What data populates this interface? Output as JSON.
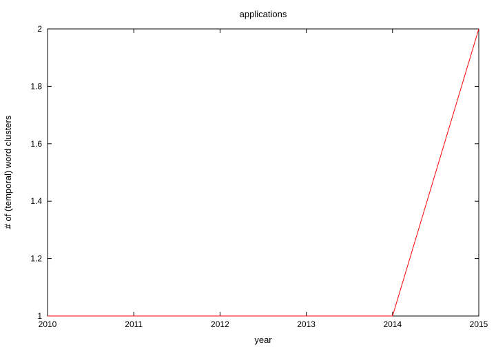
{
  "chart_data": {
    "type": "line",
    "title": "applications",
    "xlabel": "year",
    "ylabel": "# of (temporal) word clusters",
    "xlim": [
      2010,
      2015
    ],
    "ylim": [
      1,
      2
    ],
    "x_ticks": [
      "2010",
      "2011",
      "2012",
      "2013",
      "2014",
      "2015"
    ],
    "y_ticks": [
      "1",
      "1.2",
      "1.4",
      "1.6",
      "1.8",
      "2"
    ],
    "grid": false,
    "legend": "none",
    "series": [
      {
        "color": "#ff0000",
        "x": [
          2010,
          2011,
          2012,
          2013,
          2014,
          2015
        ],
        "y": [
          1,
          1,
          1,
          1,
          1,
          2
        ]
      }
    ]
  }
}
